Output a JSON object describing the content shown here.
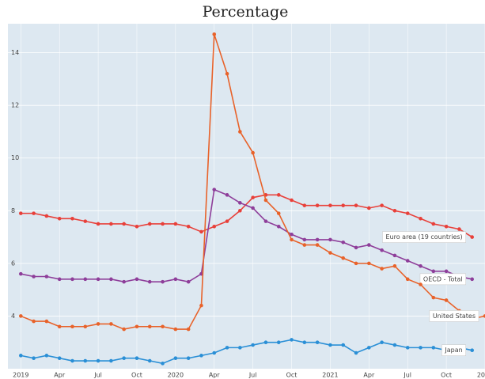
{
  "chart_data": {
    "type": "line",
    "title": "Percentage",
    "x": [
      "2019-01",
      "2019-02",
      "2019-03",
      "2019-04",
      "2019-05",
      "2019-06",
      "2019-07",
      "2019-08",
      "2019-09",
      "2019-10",
      "2019-11",
      "2019-12",
      "2020-01",
      "2020-02",
      "2020-03",
      "2020-04",
      "2020-05",
      "2020-06",
      "2020-07",
      "2020-08",
      "2020-09",
      "2020-10",
      "2020-11",
      "2020-12",
      "2021-01",
      "2021-02",
      "2021-03",
      "2021-04",
      "2021-05",
      "2021-06",
      "2021-07",
      "2021-08",
      "2021-09",
      "2021-10",
      "2021-11",
      "2021-12",
      "2022-01"
    ],
    "series": [
      {
        "name": "Euro area (19 countries)",
        "color": "#e8403a",
        "values": [
          7.9,
          7.9,
          7.8,
          7.7,
          7.7,
          7.6,
          7.5,
          7.5,
          7.5,
          7.4,
          7.5,
          7.5,
          7.5,
          7.4,
          7.2,
          7.4,
          7.6,
          8.0,
          8.5,
          8.6,
          8.6,
          8.4,
          8.2,
          8.2,
          8.2,
          8.2,
          8.2,
          8.1,
          8.2,
          8.0,
          7.9,
          7.7,
          7.5,
          7.4,
          7.3,
          7.0,
          null
        ]
      },
      {
        "name": "OECD - Total",
        "color": "#8e3e9a",
        "values": [
          5.6,
          5.5,
          5.5,
          5.4,
          5.4,
          5.4,
          5.4,
          5.4,
          5.3,
          5.4,
          5.3,
          5.3,
          5.4,
          5.3,
          5.6,
          8.8,
          8.6,
          8.3,
          8.1,
          7.6,
          7.4,
          7.1,
          6.9,
          6.9,
          6.9,
          6.8,
          6.6,
          6.7,
          6.5,
          6.3,
          6.1,
          5.9,
          5.7,
          5.7,
          5.5,
          5.4,
          null
        ]
      },
      {
        "name": "United States",
        "color": "#e8622a",
        "values": [
          4.0,
          3.8,
          3.8,
          3.6,
          3.6,
          3.6,
          3.7,
          3.7,
          3.5,
          3.6,
          3.6,
          3.6,
          3.5,
          3.5,
          4.4,
          14.7,
          13.2,
          11.0,
          10.2,
          8.4,
          7.9,
          6.9,
          6.7,
          6.7,
          6.4,
          6.2,
          6.0,
          6.0,
          5.8,
          5.9,
          5.4,
          5.2,
          4.7,
          4.6,
          4.2,
          3.9,
          4.0
        ]
      },
      {
        "name": "Japan",
        "color": "#2a8fd6",
        "values": [
          2.5,
          2.4,
          2.5,
          2.4,
          2.3,
          2.3,
          2.3,
          2.3,
          2.4,
          2.4,
          2.3,
          2.2,
          2.4,
          2.4,
          2.5,
          2.6,
          2.8,
          2.8,
          2.9,
          3.0,
          3.0,
          3.1,
          3.0,
          3.0,
          2.9,
          2.9,
          2.6,
          2.8,
          3.0,
          2.9,
          2.8,
          2.8,
          2.8,
          2.7,
          2.8,
          2.7,
          null
        ]
      }
    ],
    "xlim": [
      "2018-12",
      "2022-01"
    ],
    "xticks": [
      {
        "value": "2019-01",
        "label": "2019"
      },
      {
        "value": "2019-04",
        "label": "Apr"
      },
      {
        "value": "2019-07",
        "label": "Jul"
      },
      {
        "value": "2019-10",
        "label": "Oct"
      },
      {
        "value": "2020-01",
        "label": "2020"
      },
      {
        "value": "2020-04",
        "label": "Apr"
      },
      {
        "value": "2020-07",
        "label": "Jul"
      },
      {
        "value": "2020-10",
        "label": "Oct"
      },
      {
        "value": "2021-01",
        "label": "2021"
      },
      {
        "value": "2021-04",
        "label": "Apr"
      },
      {
        "value": "2021-07",
        "label": "Jul"
      },
      {
        "value": "2021-10",
        "label": "Oct"
      },
      {
        "value": "2022-01",
        "label": "2022"
      }
    ],
    "ylim": [
      2.0,
      15.1
    ],
    "yticks": [
      4,
      6,
      8,
      10,
      12,
      14
    ],
    "grid": true
  }
}
